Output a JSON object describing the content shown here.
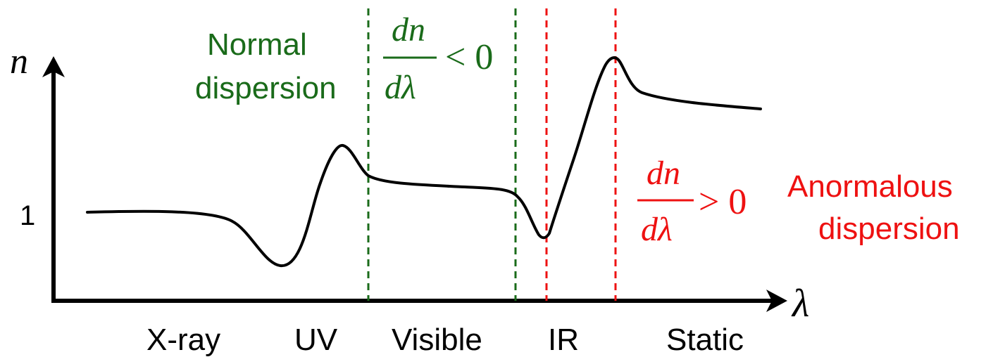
{
  "axes": {
    "y_label": "n",
    "x_label": "λ",
    "y_tick": "1"
  },
  "regions": [
    "X-ray",
    "UV",
    "Visible",
    "IR",
    "Static"
  ],
  "normal": {
    "title_line1": "Normal",
    "title_line2": "dispersion",
    "frac_num": "dn",
    "frac_den": "dλ",
    "relation": "< 0",
    "color": "#1a6b1a"
  },
  "anomalous": {
    "title_line1": "Anormalous",
    "title_line2": "dispersion",
    "frac_num": "dn",
    "frac_den": "dλ",
    "relation": "> 0",
    "color": "#ee1111"
  },
  "curve_color": "#000000"
}
